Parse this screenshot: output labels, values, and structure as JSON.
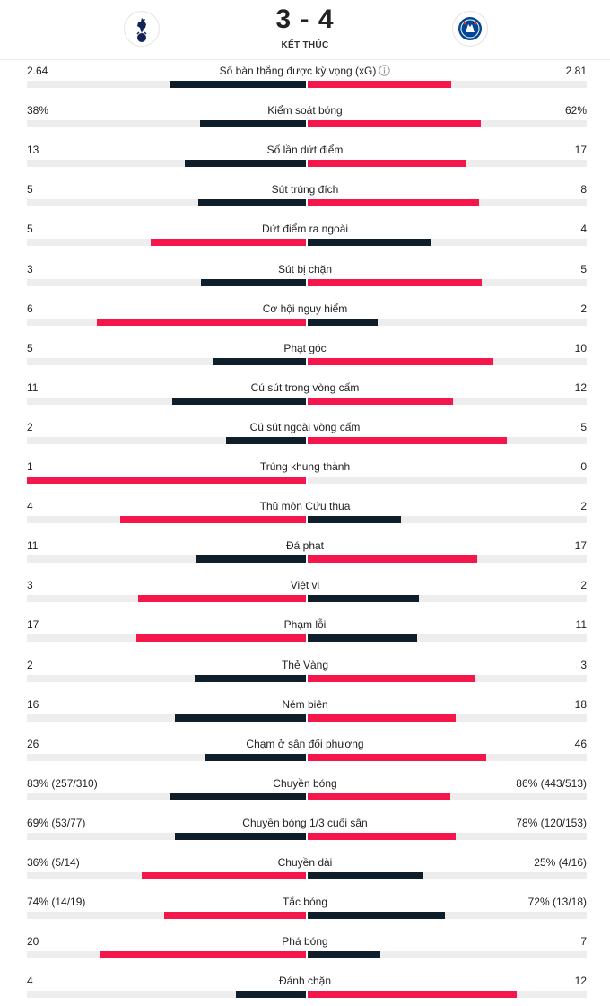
{
  "match": {
    "score": "3 - 4",
    "status": "KẾT THÚC",
    "home_crest_icon": "tottenham-crest-icon",
    "away_crest_icon": "chelsea-crest-icon"
  },
  "colors": {
    "leader": "#f5174b",
    "trailer": "#0e1e2b",
    "track": "#ededed"
  },
  "stats": [
    {
      "label": "Số bàn thắng được kỳ vọng (xG)",
      "home": "2.64",
      "away": "2.81",
      "home_share": 0.484,
      "away_share": 0.516,
      "leader": "away",
      "info_icon": "info-icon"
    },
    {
      "label": "Kiểm soát bóng",
      "home": "38%",
      "away": "62%",
      "home_share": 0.38,
      "away_share": 0.62,
      "leader": "away"
    },
    {
      "label": "Số lần dứt điểm",
      "home": "13",
      "away": "17",
      "home_share": 0.433,
      "away_share": 0.567,
      "leader": "away"
    },
    {
      "label": "Sút trúng đích",
      "home": "5",
      "away": "8",
      "home_share": 0.385,
      "away_share": 0.615,
      "leader": "away"
    },
    {
      "label": "Dứt điểm ra ngoài",
      "home": "5",
      "away": "4",
      "home_share": 0.556,
      "away_share": 0.444,
      "leader": "home"
    },
    {
      "label": "Sút bị chặn",
      "home": "3",
      "away": "5",
      "home_share": 0.375,
      "away_share": 0.625,
      "leader": "away"
    },
    {
      "label": "Cơ hội nguy hiểm",
      "home": "6",
      "away": "2",
      "home_share": 0.75,
      "away_share": 0.25,
      "leader": "home"
    },
    {
      "label": "Phạt góc",
      "home": "5",
      "away": "10",
      "home_share": 0.333,
      "away_share": 0.667,
      "leader": "away"
    },
    {
      "label": "Cú sút trong vòng cấm",
      "home": "11",
      "away": "12",
      "home_share": 0.478,
      "away_share": 0.522,
      "leader": "away"
    },
    {
      "label": "Cú sút ngoài vòng cấm",
      "home": "2",
      "away": "5",
      "home_share": 0.286,
      "away_share": 0.714,
      "leader": "away"
    },
    {
      "label": "Trúng khung thành",
      "home": "1",
      "away": "0",
      "home_share": 1.0,
      "away_share": 0.0,
      "leader": "home"
    },
    {
      "label": "Thủ môn Cứu thua",
      "home": "4",
      "away": "2",
      "home_share": 0.667,
      "away_share": 0.333,
      "leader": "home"
    },
    {
      "label": "Đá phạt",
      "home": "11",
      "away": "17",
      "home_share": 0.393,
      "away_share": 0.607,
      "leader": "away"
    },
    {
      "label": "Việt vị",
      "home": "3",
      "away": "2",
      "home_share": 0.6,
      "away_share": 0.4,
      "leader": "home"
    },
    {
      "label": "Phạm lỗi",
      "home": "17",
      "away": "11",
      "home_share": 0.607,
      "away_share": 0.393,
      "leader": "home"
    },
    {
      "label": "Thẻ Vàng",
      "home": "2",
      "away": "3",
      "home_share": 0.4,
      "away_share": 0.6,
      "leader": "away"
    },
    {
      "label": "Ném biên",
      "home": "16",
      "away": "18",
      "home_share": 0.471,
      "away_share": 0.529,
      "leader": "away"
    },
    {
      "label": "Chạm ở sân đối phương",
      "home": "26",
      "away": "46",
      "home_share": 0.361,
      "away_share": 0.639,
      "leader": "away"
    },
    {
      "label": "Chuyền bóng",
      "home": "83% (257/310)",
      "away": "86% (443/513)",
      "home_share": 0.49,
      "away_share": 0.51,
      "leader": "away"
    },
    {
      "label": "Chuyền bóng 1/3 cuối sân",
      "home": "69% (53/77)",
      "away": "78% (120/153)",
      "home_share": 0.47,
      "away_share": 0.53,
      "leader": "away"
    },
    {
      "label": "Chuyền dài",
      "home": "36% (5/14)",
      "away": "25% (4/16)",
      "home_share": 0.59,
      "away_share": 0.41,
      "leader": "home"
    },
    {
      "label": "Tắc bóng",
      "home": "74% (14/19)",
      "away": "72% (13/18)",
      "home_share": 0.507,
      "away_share": 0.493,
      "leader": "home"
    },
    {
      "label": "Phá bóng",
      "home": "20",
      "away": "7",
      "home_share": 0.741,
      "away_share": 0.259,
      "leader": "home"
    },
    {
      "label": "Đánh chặn",
      "home": "4",
      "away": "12",
      "home_share": 0.25,
      "away_share": 0.75,
      "leader": "away"
    }
  ]
}
